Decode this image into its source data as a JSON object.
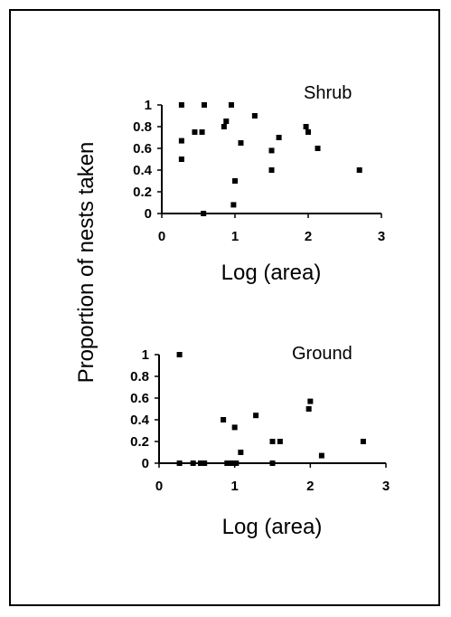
{
  "figure": {
    "ylabel": "Proportion of nests taken"
  },
  "chart_data": [
    {
      "type": "scatter",
      "panel_label": "Shrub",
      "xlabel": "Log (area)",
      "ylabel": "Proportion of nests taken",
      "xlim": [
        0,
        3
      ],
      "ylim": [
        0,
        1
      ],
      "xticks": [
        "0",
        "1",
        "2",
        "3"
      ],
      "yticks": [
        "0",
        "0.2",
        "0.4",
        "0.6",
        "0.8",
        "1"
      ],
      "grid": false,
      "marker_color": "#000000",
      "points": [
        {
          "x": 0.27,
          "y": 1.0
        },
        {
          "x": 0.27,
          "y": 0.67
        },
        {
          "x": 0.27,
          "y": 0.5
        },
        {
          "x": 0.45,
          "y": 0.75
        },
        {
          "x": 0.55,
          "y": 0.75
        },
        {
          "x": 0.58,
          "y": 1.0
        },
        {
          "x": 0.57,
          "y": 0.0
        },
        {
          "x": 0.85,
          "y": 0.8
        },
        {
          "x": 0.88,
          "y": 0.85
        },
        {
          "x": 0.95,
          "y": 1.0
        },
        {
          "x": 1.0,
          "y": 0.3
        },
        {
          "x": 0.98,
          "y": 0.08
        },
        {
          "x": 1.08,
          "y": 0.65
        },
        {
          "x": 1.27,
          "y": 0.9
        },
        {
          "x": 1.5,
          "y": 0.58
        },
        {
          "x": 1.5,
          "y": 0.4
        },
        {
          "x": 1.6,
          "y": 0.7
        },
        {
          "x": 1.97,
          "y": 0.8
        },
        {
          "x": 2.0,
          "y": 0.75
        },
        {
          "x": 2.13,
          "y": 0.6
        },
        {
          "x": 2.7,
          "y": 0.4
        }
      ]
    },
    {
      "type": "scatter",
      "panel_label": "Ground",
      "xlabel": "Log (area)",
      "ylabel": "Proportion of nests taken",
      "xlim": [
        0,
        3
      ],
      "ylim": [
        0,
        1
      ],
      "xticks": [
        "0",
        "1",
        "2",
        "3"
      ],
      "yticks": [
        "0",
        "0.2",
        "0.4",
        "0.6",
        "0.8",
        "1"
      ],
      "grid": false,
      "marker_color": "#000000",
      "points": [
        {
          "x": 0.27,
          "y": 1.0
        },
        {
          "x": 0.27,
          "y": 0.0
        },
        {
          "x": 0.45,
          "y": 0.0
        },
        {
          "x": 0.55,
          "y": 0.0
        },
        {
          "x": 0.6,
          "y": 0.0
        },
        {
          "x": 0.85,
          "y": 0.4
        },
        {
          "x": 0.9,
          "y": 0.0
        },
        {
          "x": 0.95,
          "y": 0.0
        },
        {
          "x": 1.0,
          "y": 0.33
        },
        {
          "x": 1.02,
          "y": 0.0
        },
        {
          "x": 1.08,
          "y": 0.1
        },
        {
          "x": 1.28,
          "y": 0.44
        },
        {
          "x": 1.5,
          "y": 0.2
        },
        {
          "x": 1.5,
          "y": 0.0
        },
        {
          "x": 1.6,
          "y": 0.2
        },
        {
          "x": 1.98,
          "y": 0.5
        },
        {
          "x": 2.0,
          "y": 0.57
        },
        {
          "x": 2.15,
          "y": 0.07
        },
        {
          "x": 2.7,
          "y": 0.2
        }
      ]
    }
  ]
}
